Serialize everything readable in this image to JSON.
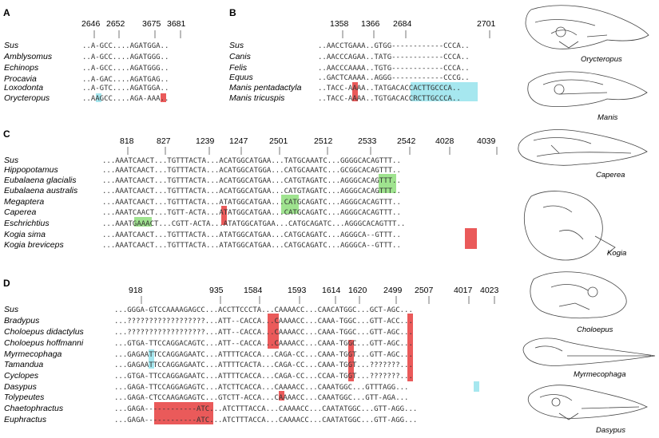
{
  "panels": [
    {
      "label": "A",
      "positions": [
        "2646",
        "2652",
        "3675",
        "3681"
      ],
      "rows": [
        {
          "taxon": "Sus",
          "seq": "..A-GCC....AGATGGA.."
        },
        {
          "taxon": "Amblysomus",
          "seq": "..A-GCC....AGATGGG.."
        },
        {
          "taxon": "Echinops",
          "seq": "..A-GCC....AGATGGG.."
        },
        {
          "taxon": "Procavia",
          "seq": "..A-GAC....AGATGAG.."
        },
        {
          "taxon": "Loxodonta",
          "seq": "..A-GTC....AGATGGA.."
        },
        {
          "taxon": "Orycteropus",
          "seq": "..AAGCC....AGA-AAA.."
        }
      ],
      "highlight_colors": {
        "insertion": "#a6e7ef",
        "deletion": "#ea5a5a",
        "stop": "#9fe38f"
      }
    },
    {
      "label": "B",
      "positions": [
        "1358",
        "1366",
        "2684",
        "2701"
      ],
      "rows": [
        {
          "taxon": "Sus",
          "seq": "..AACCTGAAA..GTGG------------CCCA.."
        },
        {
          "taxon": "Canis",
          "seq": "..AACCCAGAA..TATG------------CCCA.."
        },
        {
          "taxon": "Felis",
          "seq": "..AACCCAAAA..TGTG------------CCCA.."
        },
        {
          "taxon": "Equus",
          "seq": "..GACTCAAAA..AGGG------------CCCG.."
        },
        {
          "taxon": "Manis pentadactyla",
          "seq": "..TACC-AAAA..TATGACACCACTTGCCCA.."
        },
        {
          "taxon": "Manis tricuspis",
          "seq": "..TACC-AAAA..TGTGACACCRCTTGCCCA.."
        }
      ]
    },
    {
      "label": "C",
      "positions": [
        "818",
        "827",
        "1239",
        "1247",
        "2501",
        "2512",
        "2533",
        "2542",
        "4028",
        "4039"
      ],
      "rows": [
        {
          "taxon": "Sus",
          "seq": "...AAATCAACT...TGTTTACTA...ACATGGCATGAA...TATGCAAATC...GGGGCACAGTTT.."
        },
        {
          "taxon": "Hippopotamus",
          "seq": "...AAATCAACT...TGTTTACTA...ACATGGCATGGA...CATGCAAATC...GCGGCACAGTTT.."
        },
        {
          "taxon": "Eubalaena glacialis",
          "seq": "...AAATCAACT...TGTTTACTA...ACATGGCATGAA...CATGTAGATC...AGGGCACAGTTT.."
        },
        {
          "taxon": "Eubalaena australis",
          "seq": "...AAATCAACT...TGTTTACTA...ACATGGCATGAA...CATGTAGATC...AGGGCACAGTTT.."
        },
        {
          "taxon": "Megaptera",
          "seq": "...AAATCAACT...TGTTTACTA...ATATGGCATGAA...CATGCAGATC...AGGGCACAGTTT.."
        },
        {
          "taxon": "Caperea",
          "seq": "...AAATCAACT...TGTT-ACTA...ATATGGCATGAA...CATGCAGATC...AGGGCACAGTTT.."
        },
        {
          "taxon": "Eschrichtius",
          "seq": "...AAATGAAACT...CGTT-ACTA...ATATGGCATGAA...CATGCAGATC...AGGGCACAGTTT.."
        },
        {
          "taxon": "Kogia sima",
          "seq": "...AAATCAACT...TGTTTACTA...ATATGGCATGAA...CATGCAGATC...AGGGCA--GTTT.."
        },
        {
          "taxon": "Kogia breviceps",
          "seq": "...AAATCAACT...TGTTTACTA...ATATGGCATGAA...CATGCAGATC...AGGGCA--GTTT.."
        }
      ]
    },
    {
      "label": "D",
      "positions": [
        "918",
        "935",
        "1584",
        "1593",
        "1614",
        "1620",
        "2499",
        "2507",
        "4017",
        "4023"
      ],
      "rows": [
        {
          "taxon": "Sus",
          "seq": "...GGGA-GTCCAAAAGAGCC...ACCTTCCCTA...CAAAACC...CAACATGGC...GCT-AGC..."
        },
        {
          "taxon": "Bradypus",
          "seq": "...??????????????????...ATT--CACCA...CAAAACC...CAAA-TGGC...GTT-ACC..."
        },
        {
          "taxon": "Choloepus didactylus",
          "seq": "...??????????????????...ATT--CACCA...CAAAACC...CAAA-TGGC...GTT-AGC..."
        },
        {
          "taxon": "Choloepus hoffmanni",
          "seq": "...GTGA-TTCCAGGACAGTC...ATT--CACCA...CAAAACC...CAAA-TGGC...GTT-AGC..."
        },
        {
          "taxon": "Myrmecophaga",
          "seq": "...GAGAATTCCAGGAGAATC...ATTTTCACCA...CAGA-CC...CAAA-TGGT...GTT-AGC..."
        },
        {
          "taxon": "Tamandua",
          "seq": "...GAGAATTCCAGGAGAATC...ATTTTCACTA...CAGA-CC...CAAA-TGGT...???????..."
        },
        {
          "taxon": "Cyclopes",
          "seq": "...GTGA-TTCCAGGAGAATC...ATTTTCACCA...CAGA-CC...CCAA-TGGT...???????..."
        },
        {
          "taxon": "Dasypus",
          "seq": "...GAGA-TTCCAGGAGAGTC...ATCTTCACCA...CAAAACC...CAAATGGC...GTTTAGG..."
        },
        {
          "taxon": "Tolypeutes",
          "seq": "...GAGA-CTCCAAGAGAGTC...GTCTT-ACCA...CAAAACC...CAAATGGC...GTT-AGA..."
        },
        {
          "taxon": "Chaetophractus",
          "seq": "...GAGA------------ATC...ATCTTTACCA...CAAAACC...CAATATGGC...GTT-AGG..."
        },
        {
          "taxon": "Euphractus",
          "seq": "...GAGA------------ATC...ATCTTTACCA...CAAAACC...CAATATGGC...GTT-AGG..."
        }
      ]
    }
  ],
  "skull_labels": [
    "Orycteropus",
    "Manis",
    "Caperea",
    "Kogia",
    "Choloepus",
    "Myrmecophaga",
    "Dasypus"
  ]
}
